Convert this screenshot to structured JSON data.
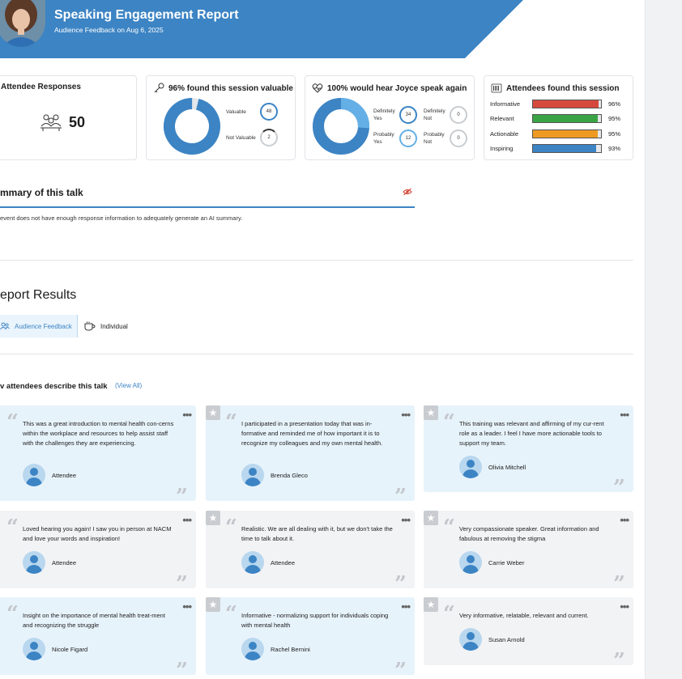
{
  "header": {
    "title": "Speaking Engagement Report",
    "subtitle": "Audience Feedback on Aug 6, 2025",
    "banner_color": "#3c84c4"
  },
  "stats": {
    "responses": {
      "title": "Attendee Responses",
      "count": "50"
    },
    "valuable": {
      "title": "96% found this session valuable",
      "items": [
        {
          "label": "Valuable",
          "value": "48"
        },
        {
          "label": "Not Valuable",
          "value": "2"
        }
      ]
    },
    "hear_again": {
      "title": "100% would hear Joyce speak again",
      "items": [
        {
          "label": "Definitely Yes",
          "value": "34"
        },
        {
          "label": "Definitely Not",
          "value": "0"
        },
        {
          "label": "Probably Yes",
          "value": "12"
        },
        {
          "label": "Probably Not",
          "value": "0"
        }
      ]
    },
    "found": {
      "title": "Attendees found this session",
      "rows": [
        {
          "label": "Informative",
          "pct": "96%",
          "value": 0.96,
          "color": "#d64a3e"
        },
        {
          "label": "Relevant",
          "pct": "95%",
          "value": 0.95,
          "color": "#3aa445"
        },
        {
          "label": "Actionable",
          "pct": "95%",
          "value": 0.95,
          "color": "#ee9a22"
        },
        {
          "label": "Inspiring",
          "pct": "93%",
          "value": 0.93,
          "color": "#3c84c4"
        }
      ]
    }
  },
  "summary": {
    "title": "mmary of this talk",
    "text": "event does not have enough response information to adequately generate an AI summary."
  },
  "results": {
    "title": "eport Results",
    "tabs": [
      {
        "label": "Audience Feedback",
        "active": true
      },
      {
        "label": "Individual",
        "active": false
      }
    ]
  },
  "describe": {
    "title": "v attendees describe this talk",
    "view_all": "(View All)"
  },
  "quotes": [
    {
      "text": "This was a great introduction to mental health con-cerns within the workplace and resources to help assist staff with the challenges they are experiencing.",
      "author": "Attendee"
    },
    {
      "text": "I participated in a presentation today that was in-formative and reminded me of how important it is to recognize my colleagues and my own mental health.",
      "author": "Brenda Gleco"
    },
    {
      "text": "This training was relevant and affirming of my cur-rent role as a leader. I feel I have more actionable tools to support my team.",
      "author": "Olivia Mitchell"
    },
    {
      "text": "Loved hearing you again! I saw you in person at NACM and love your words and inspiration!",
      "author": "Attendee"
    },
    {
      "text": "Realistic. We are all dealing with it, but we don't take the time to talk about it.",
      "author": "Attendee"
    },
    {
      "text": "Very compassionate speaker. Great information and fabulous at removing the stigma",
      "author": "Carrie Weber"
    },
    {
      "text": "Insight on the importance of mental health treat-ment and recognizing the struggle",
      "author": "Nicole Figard"
    },
    {
      "text": "Informative - normalizing support for individuals coping with mental health",
      "author": "Rachel Bernini"
    },
    {
      "text": "Very informative, relatable, relevant and current.",
      "author": "Susan Arnold"
    }
  ]
}
